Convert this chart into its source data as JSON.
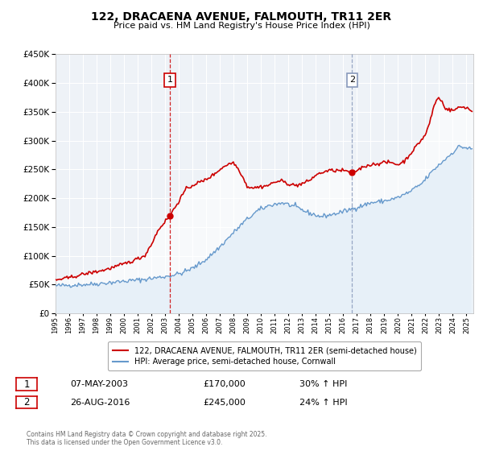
{
  "title": "122, DRACAENA AVENUE, FALMOUTH, TR11 2ER",
  "subtitle": "Price paid vs. HM Land Registry's House Price Index (HPI)",
  "legend_line1": "122, DRACAENA AVENUE, FALMOUTH, TR11 2ER (semi-detached house)",
  "legend_line2": "HPI: Average price, semi-detached house, Cornwall",
  "red_color": "#cc0000",
  "blue_color": "#6699cc",
  "blue_fill": "#cce0f0",
  "annotation1_date": "07-MAY-2003",
  "annotation1_price": "£170,000",
  "annotation1_hpi": "30% ↑ HPI",
  "annotation2_date": "26-AUG-2016",
  "annotation2_price": "£245,000",
  "annotation2_hpi": "24% ↑ HPI",
  "footer": "Contains HM Land Registry data © Crown copyright and database right 2025.\nThis data is licensed under the Open Government Licence v3.0.",
  "ylim": [
    0,
    450000
  ],
  "xlim_start": 1995.0,
  "xlim_end": 2025.5,
  "vline1_x": 2003.35,
  "vline2_x": 2016.65,
  "sale1_x": 2003.35,
  "sale1_y": 170000,
  "sale2_x": 2016.65,
  "sale2_y": 245000,
  "background_color": "#eef2f7"
}
